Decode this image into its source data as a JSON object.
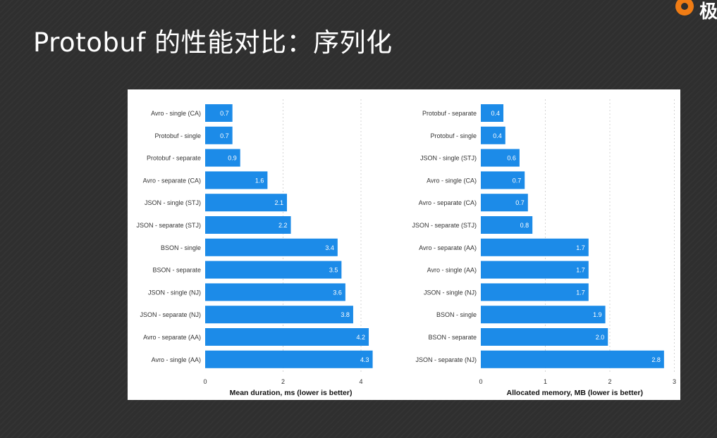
{
  "slide": {
    "title": "Protobuf 的性能对比：序列化",
    "logo_text": "极"
  },
  "colors": {
    "bar": "#1c8be8",
    "grid": "#d4d4d4",
    "label": "#333333",
    "axis_label": "#111111"
  },
  "chart_data": [
    {
      "type": "bar",
      "orientation": "horizontal",
      "categories": [
        "Avro - single (CA)",
        "Protobuf - single",
        "Protobuf - separate",
        "Avro - separate (CA)",
        "JSON - single (STJ)",
        "JSON - separate (STJ)",
        "BSON - single",
        "BSON - separate",
        "JSON - single (NJ)",
        "JSON - separate (NJ)",
        "Avro - separate (AA)",
        "Avro - single (AA)"
      ],
      "values": [
        0.7,
        0.7,
        0.9,
        1.6,
        2.1,
        2.2,
        3.4,
        3.5,
        3.6,
        3.8,
        4.2,
        4.3
      ],
      "value_labels": [
        "0.7",
        "0.7",
        "0.9",
        "1.6",
        "2.1",
        "2.2",
        "3.4",
        "3.5",
        "3.6",
        "3.8",
        "4.2",
        "4.3"
      ],
      "xlabel": "Mean duration, ms (lower is better)",
      "xlim": [
        0,
        4.4
      ],
      "xticks": [
        0,
        2,
        4
      ],
      "grid": true
    },
    {
      "type": "bar",
      "orientation": "horizontal",
      "categories": [
        "Protobuf - separate",
        "Protobuf - single",
        "JSON - single (STJ)",
        "Avro - single (CA)",
        "Avro - separate (CA)",
        "JSON - separate (STJ)",
        "Avro - separate (AA)",
        "Avro - single (AA)",
        "JSON - single (NJ)",
        "BSON - single",
        "BSON - separate",
        "JSON - separate (NJ)"
      ],
      "values": [
        0.35,
        0.38,
        0.6,
        0.68,
        0.73,
        0.8,
        1.67,
        1.67,
        1.67,
        1.93,
        1.97,
        2.84
      ],
      "value_labels": [
        "0.4",
        "0.4",
        "0.6",
        "0.7",
        "0.7",
        "0.8",
        "1.7",
        "1.7",
        "1.7",
        "1.9",
        "2.0",
        "2.8"
      ],
      "xlabel": "Allocated memory, MB (lower is better)",
      "xlim": [
        0,
        3
      ],
      "xticks": [
        0,
        1,
        2,
        3
      ],
      "grid": true
    }
  ]
}
